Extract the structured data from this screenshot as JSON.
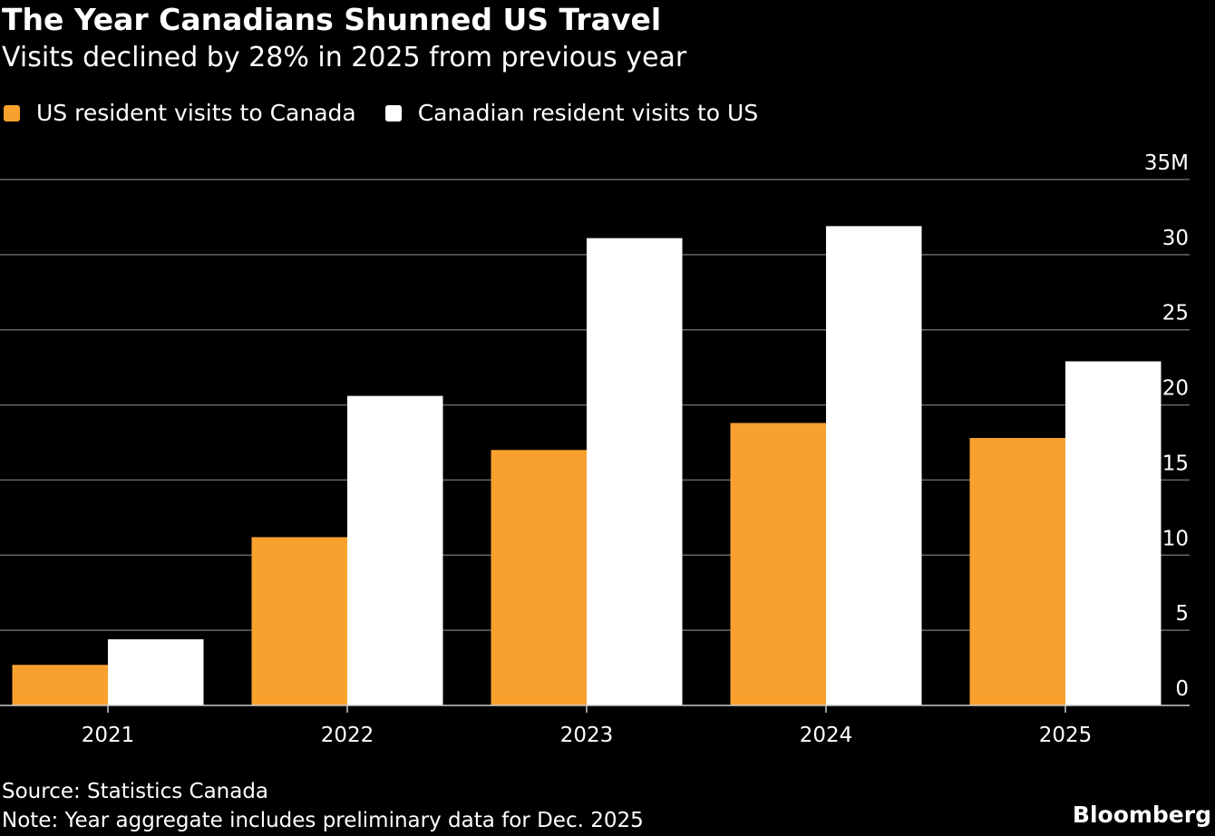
{
  "chart_data": {
    "type": "bar",
    "title": "The Year Canadians Shunned US Travel",
    "subtitle": "Visits declined by 28% in 2025 from previous year",
    "categories": [
      "2021",
      "2022",
      "2023",
      "2024",
      "2025"
    ],
    "series": [
      {
        "name": "US resident visits to Canada",
        "color": "#f9a12e",
        "values": [
          2.7,
          11.2,
          17.0,
          18.8,
          17.8
        ]
      },
      {
        "name": "Canadian resident visits to US",
        "color": "#ffffff",
        "values": [
          4.4,
          20.6,
          31.1,
          31.9,
          22.9
        ]
      }
    ],
    "ylim": [
      0,
      35
    ],
    "yticks": [
      0,
      5,
      10,
      15,
      20,
      25,
      30,
      35
    ],
    "ytick_labels": [
      "0",
      "5",
      "10",
      "15",
      "20",
      "25",
      "30",
      "35M"
    ],
    "y_axis_side": "right",
    "grid": true,
    "legend_placement": "top-left",
    "xlabel": "",
    "ylabel": ""
  },
  "footer": {
    "source": "Source: Statistics Canada",
    "note": "Note: Year aggregate includes preliminary data for Dec. 2025",
    "brand": "Bloomberg"
  }
}
